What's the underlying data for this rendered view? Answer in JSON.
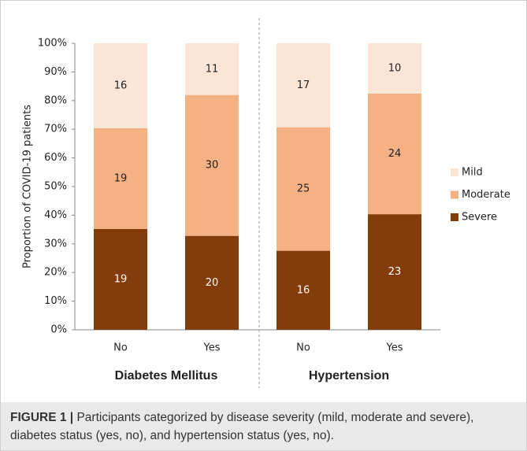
{
  "chart_data": {
    "type": "bar",
    "stacked": "percent",
    "y_label": "Proportion of COVID-19 patients",
    "categories": [
      "No",
      "Yes",
      "No",
      "Yes"
    ],
    "groups": [
      "Diabetes Mellitus",
      "Hypertension"
    ],
    "series": [
      {
        "name": "Severe",
        "color": "#843c0c",
        "label_color": "#ffffff",
        "values": [
          19,
          20,
          16,
          23
        ]
      },
      {
        "name": "Moderate",
        "color": "#f4b183",
        "label_color": "#222222",
        "values": [
          19,
          30,
          25,
          24
        ]
      },
      {
        "name": "Mild",
        "color": "#fbe5d6",
        "label_color": "#222222",
        "values": [
          16,
          11,
          17,
          10
        ]
      }
    ],
    "ylim": [
      0,
      100
    ],
    "yticks": [
      {
        "value": 0,
        "label": "0%"
      },
      {
        "value": 10,
        "label": "10%"
      },
      {
        "value": 20,
        "label": "20%"
      },
      {
        "value": 30,
        "label": "30%"
      },
      {
        "value": 40,
        "label": "40%"
      },
      {
        "value": 50,
        "label": "50%"
      },
      {
        "value": 60,
        "label": "60%"
      },
      {
        "value": 70,
        "label": "70%"
      },
      {
        "value": 80,
        "label": "80%"
      },
      {
        "value": 90,
        "label": "90%"
      },
      {
        "value": 100,
        "label": "100%"
      }
    ],
    "legend": "right"
  },
  "caption": {
    "label": "FIGURE 1 |",
    "text": "Participants categorized by disease severity (mild, moderate and severe), diabetes status (yes, no), and hypertension status (yes, no)."
  }
}
